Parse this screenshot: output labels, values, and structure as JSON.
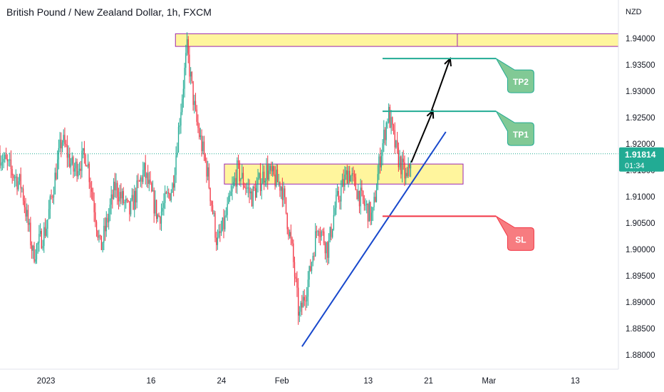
{
  "chart_data": {
    "type": "candlestick",
    "title": "British Pound / New Zealand Dollar, 1h, FXCM",
    "currency": "NZD",
    "y_ticks": [
      "1.94000",
      "1.93500",
      "1.93000",
      "1.92500",
      "1.92000",
      "1.91500",
      "1.91000",
      "1.90500",
      "1.90000",
      "1.89500",
      "1.89000",
      "1.88500",
      "1.88000"
    ],
    "y_tick_values": [
      1.94,
      1.935,
      1.93,
      1.925,
      1.92,
      1.915,
      1.91,
      1.905,
      1.9,
      1.895,
      1.89,
      1.885,
      1.88
    ],
    "ylim": [
      1.8773,
      1.9473
    ],
    "xlim": [
      0,
      43
    ],
    "x_ticks": [
      {
        "label": "2023",
        "t": 3.2
      },
      {
        "label": "16",
        "t": 10.5
      },
      {
        "label": "24",
        "t": 15.4
      },
      {
        "label": "Feb",
        "t": 19.6
      },
      {
        "label": "13",
        "t": 25.6
      },
      {
        "label": "21",
        "t": 29.8
      },
      {
        "label": "Mar",
        "t": 34.0
      },
      {
        "label": "13",
        "t": 40.0
      }
    ],
    "current_price": "1.91814",
    "current_price_value": 1.91814,
    "countdown": "01:34",
    "anchors": [
      [
        0,
        1.918
      ],
      [
        1.5,
        1.912
      ],
      [
        2.3,
        1.899
      ],
      [
        3.2,
        1.904
      ],
      [
        4.3,
        1.921
      ],
      [
        5.1,
        1.915
      ],
      [
        6.0,
        1.918
      ],
      [
        7.0,
        1.9
      ],
      [
        8.0,
        1.912
      ],
      [
        9.0,
        1.907
      ],
      [
        10.0,
        1.915
      ],
      [
        11.0,
        1.906
      ],
      [
        12.0,
        1.912
      ],
      [
        13.0,
        1.938
      ],
      [
        13.6,
        1.925
      ],
      [
        14.4,
        1.915
      ],
      [
        15.1,
        1.901
      ],
      [
        15.6,
        1.905
      ],
      [
        16.5,
        1.915
      ],
      [
        17.5,
        1.91
      ],
      [
        18.5,
        1.915
      ],
      [
        19.6,
        1.912
      ],
      [
        20.3,
        1.9
      ],
      [
        20.8,
        1.887
      ],
      [
        21.5,
        1.895
      ],
      [
        22.1,
        1.905
      ],
      [
        22.8,
        1.9
      ],
      [
        23.3,
        1.908
      ],
      [
        24.2,
        1.915
      ],
      [
        25.2,
        1.909
      ],
      [
        25.9,
        1.906
      ],
      [
        26.4,
        1.917
      ],
      [
        27.0,
        1.926
      ],
      [
        27.6,
        1.918
      ],
      [
        28.3,
        1.913
      ],
      [
        28.6,
        1.918
      ]
    ],
    "zones": [
      {
        "name": "resistance",
        "from_t": 12.2,
        "to_t": 43,
        "low": 1.9385,
        "high": 1.9409,
        "divider_t": 31.8
      },
      {
        "name": "support-resistance",
        "from_t": 15.6,
        "to_t": 32.2,
        "low": 1.9124,
        "high": 1.9162
      }
    ],
    "trendline": {
      "from": [
        21.0,
        1.8816
      ],
      "to": [
        31.0,
        1.9223
      ]
    },
    "levels": [
      {
        "label": "TP2",
        "value": 1.9362,
        "from_t": 26.6,
        "to_t": 34.5,
        "color": "#22ab94",
        "box_color": "#81c995"
      },
      {
        "label": "TP1",
        "value": 1.9262,
        "from_t": 26.6,
        "to_t": 34.5,
        "color": "#22ab94",
        "box_color": "#81c995"
      },
      {
        "label": "SL",
        "value": 1.9063,
        "from_t": 26.6,
        "to_t": 34.5,
        "color": "#f23645",
        "box_color": "#f77c80"
      }
    ],
    "arrows": [
      {
        "from": [
          28.6,
          1.9165
        ],
        "to": [
          30.1,
          1.9263
        ]
      },
      {
        "from": [
          30.0,
          1.9263
        ],
        "to": [
          31.3,
          1.9362
        ]
      }
    ],
    "colors": {
      "up": "#22ab94",
      "down": "#f23645",
      "zone_fill": "#fff59d",
      "zone_border": "#9c27b0",
      "trend": "#1848cc",
      "price_badge": "#22ab94"
    }
  }
}
